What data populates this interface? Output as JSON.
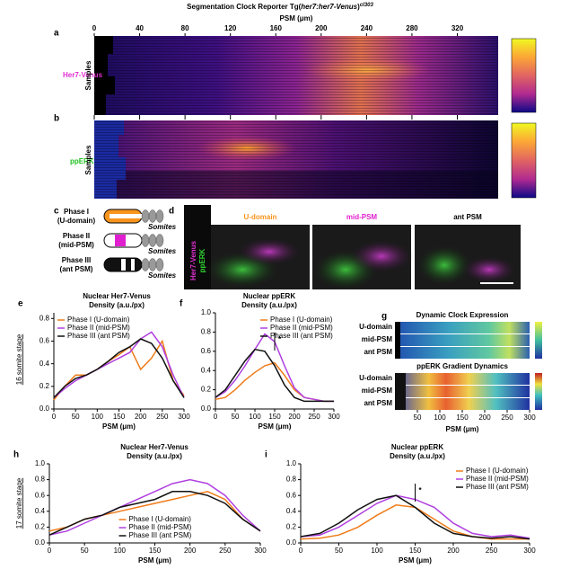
{
  "title": {
    "pre": "Segmentation Clock Reporter Tg(",
    "italic": "her7:her7-Venus",
    "post": ")",
    "sup": "cl303"
  },
  "top_axis": {
    "label": "PSM (μm)",
    "ticks": [
      0,
      40,
      80,
      120,
      160,
      200,
      240,
      280,
      320
    ],
    "lim": [
      0,
      356
    ]
  },
  "panel_a": {
    "label": "a",
    "row_label": "Her7-Venus",
    "y_label": "Samples"
  },
  "panel_b": {
    "label": "b",
    "row_label": "ppERK",
    "y_label": "Samples"
  },
  "panel_c": {
    "label": "c",
    "phases": [
      {
        "name": "Phase I",
        "domain": "(U-domain)"
      },
      {
        "name": "Phase II",
        "domain": "(mid-PSM)"
      },
      {
        "name": "Phase III",
        "domain": "(ant PSM)"
      }
    ],
    "somites": "Somites"
  },
  "panel_d": {
    "label": "d",
    "channels": [
      "Her7-Venus",
      "ppERK"
    ],
    "columns": [
      "U-domain",
      "mid-PSM",
      "ant PSM"
    ]
  },
  "panel_g": {
    "label": "g",
    "titles": [
      "Dynamic Clock Expression",
      "ppERK Gradient Dynamics"
    ],
    "rows": [
      "U-domain",
      "mid-PSM",
      "ant PSM"
    ],
    "xlabel": "PSM (μm)",
    "xlim": [
      0,
      300
    ],
    "xticks": [
      50,
      100,
      150,
      200,
      250,
      300
    ]
  },
  "stages": [
    "16 somite stage",
    "17 somite stage"
  ],
  "chart_data": [
    {
      "type": "line",
      "panel": "e",
      "title": [
        "Nuclear Her7-Venus",
        "Density (a.u./px)"
      ],
      "xlabel": "PSM (μm)",
      "legend": "upper left",
      "x": [
        0,
        25,
        50,
        75,
        100,
        125,
        150,
        175,
        200,
        225,
        250,
        275,
        300
      ],
      "xlim": [
        0,
        300
      ],
      "xticks": [
        0,
        50,
        100,
        150,
        200,
        250,
        300
      ],
      "ylim": [
        0,
        0.85
      ],
      "yticks": [
        {
          "value": 0,
          "label": "0.0"
        },
        0.2,
        0.4,
        0.6,
        0.8
      ],
      "series": [
        {
          "name": "Phase I (U-domain)",
          "color": "#f07c1a",
          "values": [
            0.08,
            0.2,
            0.3,
            0.3,
            0.35,
            0.42,
            0.48,
            0.55,
            0.35,
            0.45,
            0.6,
            0.25,
            0.12
          ]
        },
        {
          "name": "Phase II (mid-PSM)",
          "color": "#b040e0",
          "values": [
            0.1,
            0.18,
            0.25,
            0.3,
            0.35,
            0.4,
            0.45,
            0.5,
            0.62,
            0.68,
            0.55,
            0.3,
            0.1
          ]
        },
        {
          "name": "Phase III (ant PSM)",
          "color": "#111111",
          "values": [
            0.1,
            0.2,
            0.27,
            0.3,
            0.35,
            0.42,
            0.5,
            0.55,
            0.62,
            0.58,
            0.45,
            0.25,
            0.1
          ]
        }
      ]
    },
    {
      "type": "line",
      "panel": "f",
      "title": [
        "Nuclear ppERK",
        "Density (a.u./px)"
      ],
      "xlabel": "PSM (μm)",
      "legend": "upper right",
      "annotation": "*",
      "x": [
        0,
        25,
        50,
        75,
        100,
        125,
        150,
        175,
        200,
        225,
        250,
        275,
        300
      ],
      "xlim": [
        0,
        300
      ],
      "xticks": [
        0,
        50,
        100,
        150,
        200,
        250,
        300
      ],
      "ylim": [
        0,
        1
      ],
      "yticks": [
        {
          "value": 0,
          "label": "0.0"
        },
        0.2,
        0.4,
        0.6,
        0.8,
        {
          "value": 1,
          "label": "1.0"
        }
      ],
      "series": [
        {
          "name": "Phase I (U-domain)",
          "color": "#f07c1a",
          "values": [
            0.1,
            0.12,
            0.2,
            0.3,
            0.38,
            0.45,
            0.48,
            0.35,
            0.2,
            0.12,
            0.1,
            0.08,
            0.08
          ]
        },
        {
          "name": "Phase II (mid-PSM)",
          "color": "#b040e0",
          "values": [
            0.12,
            0.18,
            0.3,
            0.45,
            0.62,
            0.78,
            0.7,
            0.45,
            0.22,
            0.12,
            0.1,
            0.08,
            0.08
          ]
        },
        {
          "name": "Phase III (ant PSM)",
          "color": "#111111",
          "values": [
            0.12,
            0.2,
            0.35,
            0.5,
            0.62,
            0.6,
            0.45,
            0.25,
            0.12,
            0.08,
            0.08,
            0.08,
            0.08
          ]
        }
      ]
    },
    {
      "type": "line",
      "panel": "h",
      "title": [
        "Nuclear Her7-Venus",
        "Density (a.u./px)"
      ],
      "xlabel": "PSM (μm)",
      "legend": "lower center",
      "x": [
        0,
        25,
        50,
        75,
        100,
        125,
        150,
        175,
        200,
        225,
        250,
        275,
        300
      ],
      "xlim": [
        0,
        300
      ],
      "xticks": [
        0,
        50,
        100,
        150,
        200,
        250,
        300
      ],
      "ylim": [
        0,
        1
      ],
      "yticks": [
        {
          "value": 0,
          "label": "0.0"
        },
        0.2,
        0.4,
        0.6,
        0.8,
        {
          "value": 1,
          "label": "1.0"
        }
      ],
      "series": [
        {
          "name": "Phase I (U-domain)",
          "color": "#f07c1a",
          "values": [
            0.15,
            0.2,
            0.3,
            0.35,
            0.4,
            0.45,
            0.5,
            0.55,
            0.6,
            0.65,
            0.55,
            0.3,
            0.15
          ]
        },
        {
          "name": "Phase II (mid-PSM)",
          "color": "#b040e0",
          "values": [
            0.1,
            0.15,
            0.25,
            0.35,
            0.45,
            0.55,
            0.65,
            0.75,
            0.8,
            0.75,
            0.6,
            0.35,
            0.15
          ]
        },
        {
          "name": "Phase III (ant PSM)",
          "color": "#111111",
          "values": [
            0.1,
            0.2,
            0.3,
            0.35,
            0.45,
            0.5,
            0.55,
            0.65,
            0.65,
            0.6,
            0.5,
            0.3,
            0.15
          ]
        }
      ]
    },
    {
      "type": "line",
      "panel": "i",
      "title": [
        "Nuclear ppERK",
        "Density (a.u./px)"
      ],
      "xlabel": "PSM (μm)",
      "legend": "upper right",
      "annotation": "*",
      "x": [
        0,
        25,
        50,
        75,
        100,
        125,
        150,
        175,
        200,
        225,
        250,
        275,
        300
      ],
      "xlim": [
        0,
        300
      ],
      "xticks": [
        0,
        50,
        100,
        150,
        200,
        250,
        300
      ],
      "ylim": [
        0,
        1
      ],
      "yticks": [
        {
          "value": 0,
          "label": "0.0"
        },
        0.2,
        0.4,
        0.6,
        0.8,
        {
          "value": 1,
          "label": "1.0"
        }
      ],
      "series": [
        {
          "name": "Phase I (U-domain)",
          "color": "#f07c1a",
          "values": [
            0.05,
            0.06,
            0.1,
            0.2,
            0.35,
            0.48,
            0.45,
            0.3,
            0.15,
            0.08,
            0.05,
            0.05,
            0.05
          ]
        },
        {
          "name": "Phase II (mid-PSM)",
          "color": "#b040e0",
          "values": [
            0.08,
            0.1,
            0.2,
            0.35,
            0.5,
            0.6,
            0.55,
            0.45,
            0.25,
            0.12,
            0.08,
            0.1,
            0.06
          ]
        },
        {
          "name": "Phase III (ant PSM)",
          "color": "#111111",
          "values": [
            0.08,
            0.12,
            0.25,
            0.42,
            0.55,
            0.6,
            0.45,
            0.25,
            0.12,
            0.08,
            0.06,
            0.08,
            0.05
          ]
        }
      ]
    }
  ]
}
